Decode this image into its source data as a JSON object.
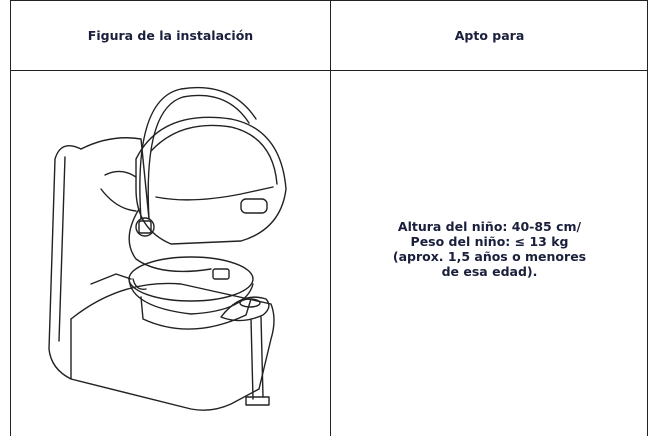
{
  "table": {
    "headers": [
      "Figura de la instalación",
      "Apto para"
    ],
    "rows": [
      [
        null,
        [
          "Altura del niño: 40-85 cm/",
          "Peso del niño: ≤ 13 kg",
          "(aprox. 1,5 años o menores",
          "de esa edad)."
        ]
      ]
    ]
  }
}
